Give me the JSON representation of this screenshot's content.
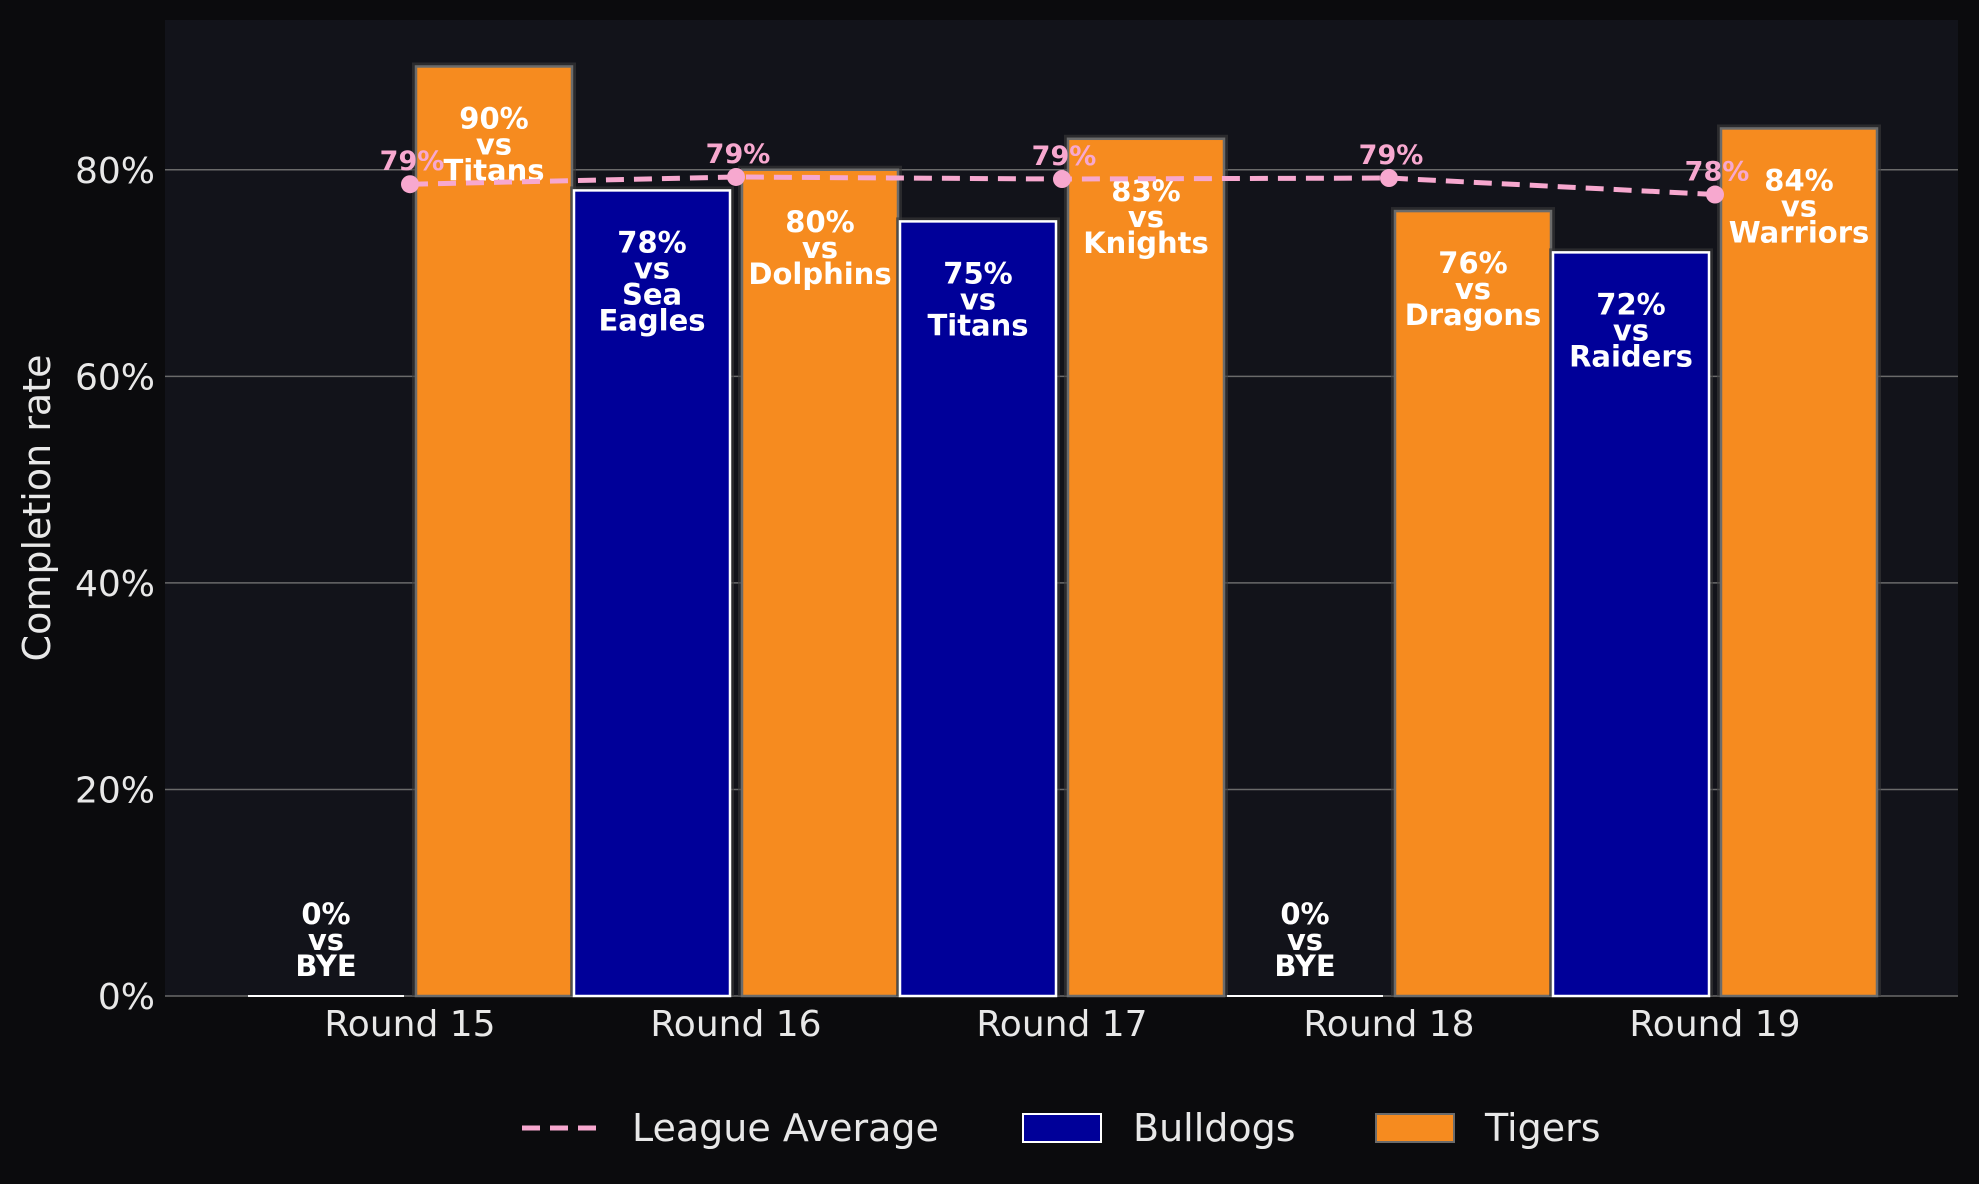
{
  "chart_data": {
    "type": "bar",
    "title": "",
    "xlabel": "",
    "ylabel": "Completion rate",
    "ylim": [
      0,
      94.5
    ],
    "yticks": [
      0,
      20,
      40,
      60,
      80
    ],
    "ytick_labels": [
      "0%",
      "20%",
      "40%",
      "60%",
      "80%"
    ],
    "grid": "horizontal",
    "legend_position": "bottom",
    "categories": [
      "Round 15",
      "Round 16",
      "Round 17",
      "Round 18",
      "Round 19"
    ],
    "series": [
      {
        "name": "Bulldogs",
        "kind": "bar",
        "color": "#000099",
        "values": [
          0,
          78,
          75,
          0,
          72
        ],
        "opponents": [
          "BYE",
          "Sea Eagles",
          "Titans",
          "BYE",
          "Raiders"
        ],
        "labels": [
          "0%",
          "78%",
          "75%",
          "0%",
          "72%"
        ]
      },
      {
        "name": "Tigers",
        "kind": "bar",
        "color": "#f68b1f",
        "values": [
          90,
          80,
          83,
          76,
          84
        ],
        "opponents": [
          "Titans",
          "Dolphins",
          "Knights",
          "Dragons",
          "Warriors"
        ],
        "labels": [
          "90%",
          "80%",
          "83%",
          "76%",
          "84%"
        ]
      },
      {
        "name": "League Average",
        "kind": "line",
        "color": "#f7a8cf",
        "style": "dashed",
        "values": [
          78.6,
          79.3,
          79.1,
          79.2,
          77.6
        ],
        "labels": [
          "79%",
          "79%",
          "79%",
          "79%",
          "78%"
        ]
      }
    ],
    "vs_word": "vs"
  },
  "colors": {
    "figure_bg": "#0b0b0d",
    "plot_bg": "#12131a",
    "grid": "#6a6a6a",
    "text": "#e8e8e8"
  }
}
